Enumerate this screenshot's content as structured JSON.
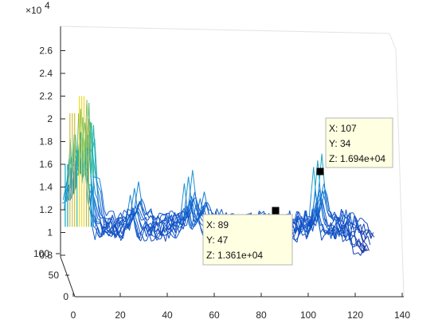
{
  "chart_data": {
    "type": "waterfall3d",
    "exponent_label": "×10",
    "exponent_power": "4",
    "z_ticks": [
      "0.8",
      "1",
      "1.2",
      "1.4",
      "1.6",
      "1.8",
      "2",
      "2.2",
      "2.4",
      "2.6"
    ],
    "z_tick_values": [
      0.8,
      1.0,
      1.2,
      1.4,
      1.6,
      1.8,
      2.0,
      2.2,
      2.4,
      2.6
    ],
    "x_ticks": [
      "0",
      "20",
      "40",
      "60",
      "80",
      "100",
      "120",
      "140"
    ],
    "x_tick_values": [
      0,
      20,
      40,
      60,
      80,
      100,
      120,
      140
    ],
    "y_ticks": [
      "0",
      "50",
      "100"
    ],
    "y_tick_values": [
      0,
      50,
      100
    ],
    "xlim": [
      0,
      140
    ],
    "ylim": [
      0,
      100
    ],
    "zlim": [
      0.75,
      2.6
    ],
    "grid": false,
    "colormap": "parula",
    "series_approx": {
      "baseline_z_e4": 1.1,
      "peaks": [
        {
          "x": 1,
          "z_e4": 1.6
        },
        {
          "x": 3,
          "z_e4": 2.05
        },
        {
          "x": 5,
          "z_e4": 1.75
        },
        {
          "x": 7,
          "z_e4": 2.2
        },
        {
          "x": 9,
          "z_e4": 2.0
        },
        {
          "x": 11,
          "z_e4": 1.5
        },
        {
          "x": 29,
          "z_e4": 1.45
        },
        {
          "x": 52,
          "z_e4": 1.55
        },
        {
          "x": 57,
          "z_e4": 1.36
        },
        {
          "x": 107,
          "z_e4": 1.694
        }
      ]
    },
    "datatips": [
      {
        "x": "X: 89",
        "y": "Y: 47",
        "z": "Z: 1.361e+04"
      },
      {
        "x": "X: 107",
        "y": "Y: 34",
        "z": "Z: 1.694e+04"
      }
    ]
  }
}
